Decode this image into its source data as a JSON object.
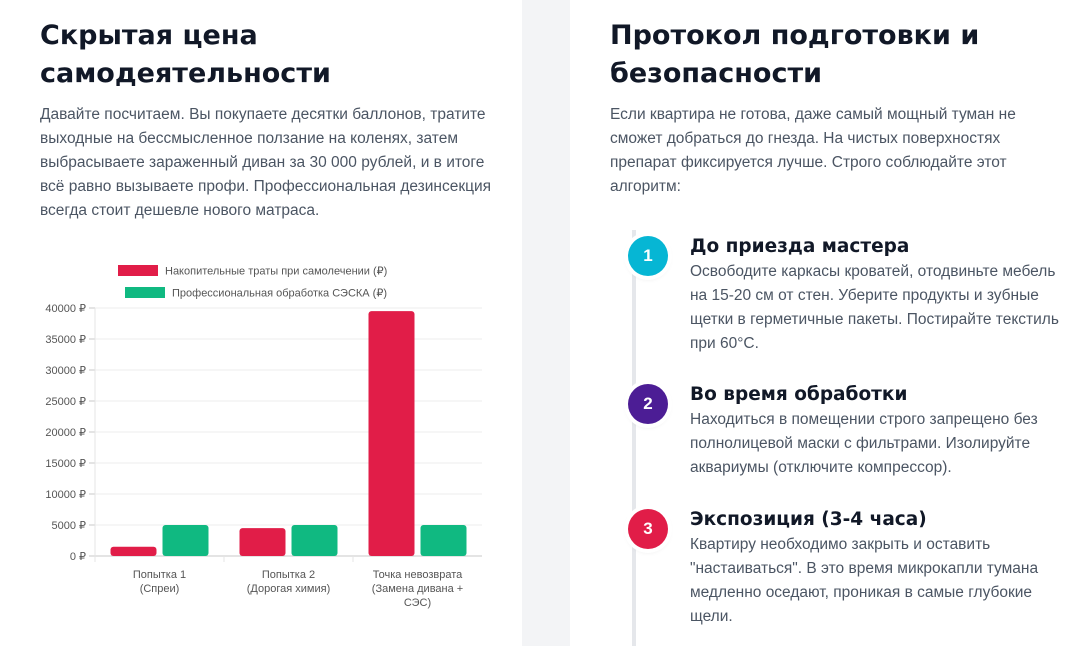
{
  "left": {
    "title": "Скрытая цена самодеятельности",
    "description": "Давайте посчитаем. Вы покупаете десятки баллонов, тратите выходные на бессмысленное ползание на коленях, затем выбрасываете зараженный диван за 30 000 рублей, и в итоге всё равно вызываете профи. Профессиональная дезинсекция всегда стоит дешевле нового матраса."
  },
  "chart_data": {
    "type": "bar",
    "categories": [
      [
        "Попытка 1",
        "(Спреи)"
      ],
      [
        "Попытка 2",
        "(Дорогая химия)"
      ],
      [
        "Точка невозврата",
        "(Замена дивана +",
        "СЭС)"
      ]
    ],
    "series": [
      {
        "name": "Накопительные траты при самолечении (₽)",
        "color": "#e11d48",
        "values": [
          1500,
          4500,
          39500
        ]
      },
      {
        "name": "Профессиональная обработка СЭСКА (₽)",
        "color": "#10b981",
        "values": [
          5000,
          5000,
          5000
        ]
      }
    ],
    "ylim": [
      0,
      40000
    ],
    "yticks": [
      0,
      5000,
      10000,
      15000,
      20000,
      25000,
      30000,
      35000,
      40000
    ],
    "ytick_labels": [
      "0 ₽",
      "5000 ₽",
      "10000 ₽",
      "15000 ₽",
      "20000 ₽",
      "25000 ₽",
      "30000 ₽",
      "35000 ₽",
      "40000 ₽"
    ],
    "grid": true,
    "legend_position": "top"
  },
  "right": {
    "title": "Протокол подготовки и безопасности",
    "description": "Если квартира не готова, даже самый мощный туман не сможет добраться до гнезда. На чистых поверхностях препарат фиксируется лучше. Строго соблюдайте этот алгоритм:",
    "steps": [
      {
        "number": "1",
        "color": "#06b6d4",
        "title": "До приезда мастера",
        "text": "Освободите каркасы кроватей, отодвиньте мебель на 15-20 см от стен. Уберите продукты и зубные щетки в герметичные пакеты. Постирайте текстиль при 60°C."
      },
      {
        "number": "2",
        "color": "#4c1d95",
        "title": "Во время обработки",
        "text": "Находиться в помещении строго запрещено без полнолицевой маски с фильтрами. Изолируйте аквариумы (отключите компрессор)."
      },
      {
        "number": "3",
        "color": "#e11d48",
        "title": "Экспозиция (3-4 часа)",
        "text": "Квартиру необходимо закрыть и оставить \"настаиваться\". В это время микрокапли тумана медленно оседают, проникая в самые глубокие щели."
      }
    ]
  }
}
